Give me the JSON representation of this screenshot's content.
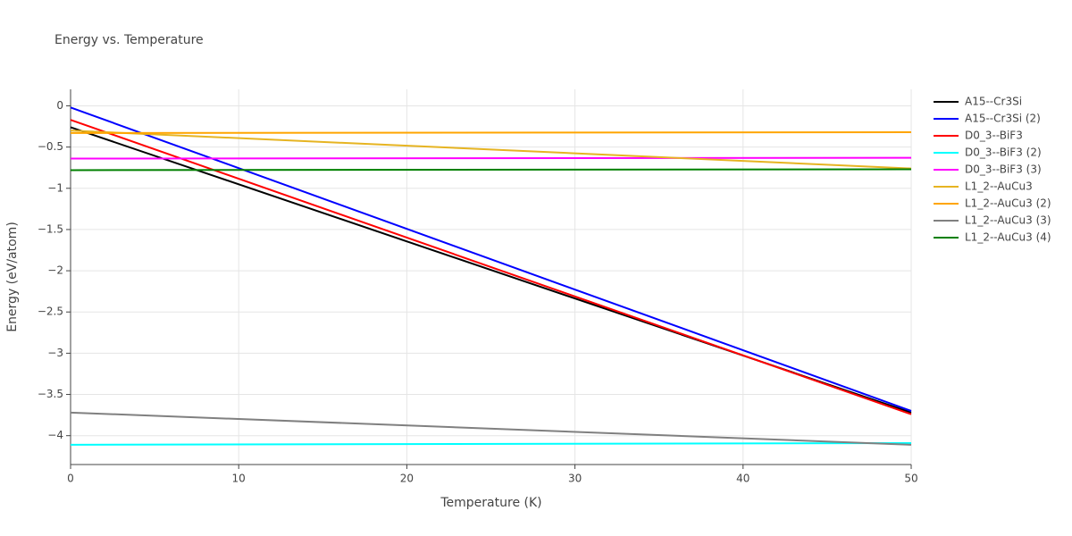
{
  "chart_data": {
    "type": "line",
    "title": "Energy vs. Temperature",
    "x_label": "Temperature (K)",
    "y_label": "Energy (eV/atom)",
    "x": [
      0,
      50
    ],
    "series": [
      {
        "name": "A15--Cr3Si",
        "color": "#000000",
        "values": [
          -0.26,
          -3.72
        ]
      },
      {
        "name": "A15--Cr3Si (2)",
        "color": "#0000ff",
        "values": [
          -0.02,
          -3.7
        ]
      },
      {
        "name": "D0_3--BiF3",
        "color": "#ff0000",
        "values": [
          -0.17,
          -3.74
        ]
      },
      {
        "name": "D0_3--BiF3 (2)",
        "color": "#00ffff",
        "values": [
          -4.11,
          -4.09
        ]
      },
      {
        "name": "D0_3--BiF3 (3)",
        "color": "#ff00ff",
        "values": [
          -0.64,
          -0.63
        ]
      },
      {
        "name": "L1_2--AuCu3",
        "color": "#e6b422",
        "values": [
          -0.3,
          -0.76
        ]
      },
      {
        "name": "L1_2--AuCu3 (2)",
        "color": "#ffa500",
        "values": [
          -0.33,
          -0.32
        ]
      },
      {
        "name": "L1_2--AuCu3 (3)",
        "color": "#808080",
        "values": [
          -3.72,
          -4.11
        ]
      },
      {
        "name": "L1_2--AuCu3 (4)",
        "color": "#008000",
        "values": [
          -0.78,
          -0.77
        ]
      }
    ],
    "xlim": [
      0,
      50
    ],
    "xticks": [
      0,
      10,
      20,
      30,
      40,
      50
    ],
    "ylim": [
      -4.35,
      0.2
    ],
    "yticks": [
      {
        "value": -4,
        "label": "−4"
      },
      {
        "value": -3.5,
        "label": "−3.5"
      },
      {
        "value": -3,
        "label": "−3"
      },
      {
        "value": -2.5,
        "label": "−2.5"
      },
      {
        "value": -2,
        "label": "−2"
      },
      {
        "value": -1.5,
        "label": "−1.5"
      },
      {
        "value": -1,
        "label": "−1"
      },
      {
        "value": -0.5,
        "label": "−0.5"
      },
      0
    ],
    "grid": true
  }
}
